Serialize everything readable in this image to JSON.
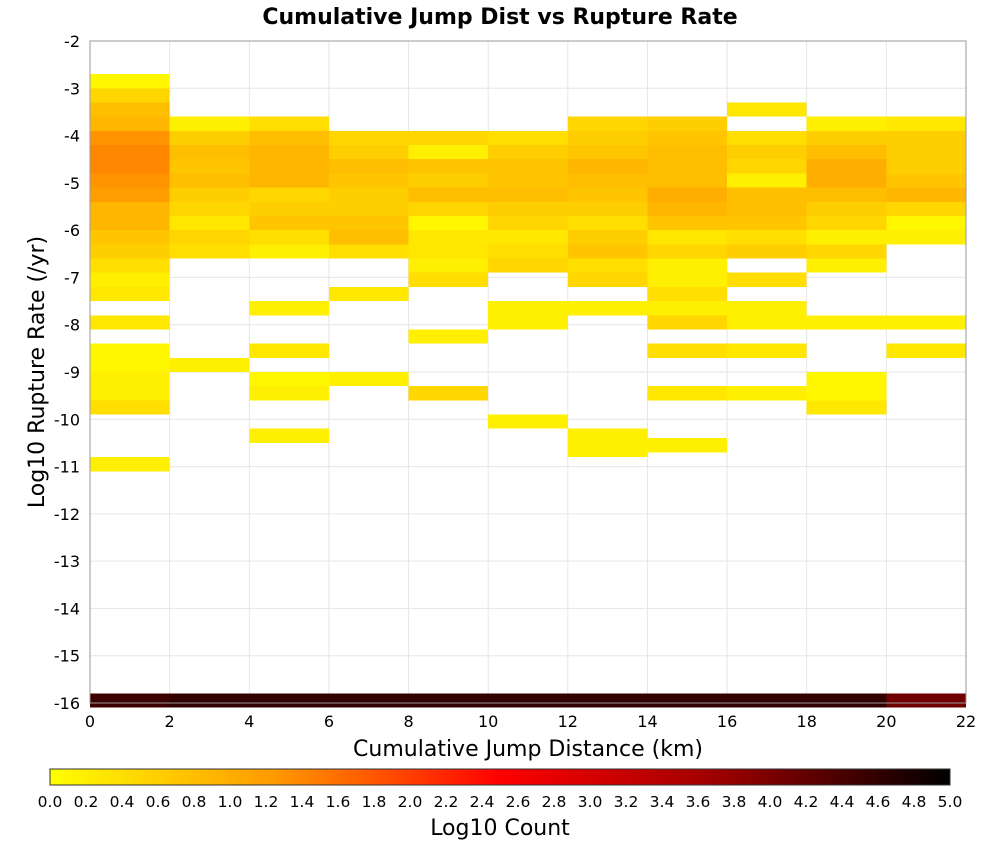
{
  "chart_data": {
    "type": "heatmap",
    "title": "Cumulative Jump Dist vs Rupture Rate",
    "xlabel": "Cumulative Jump Distance (km)",
    "ylabel": "Log10 Rupture Rate (/yr)",
    "xlim": [
      0,
      22
    ],
    "ylim": [
      -16,
      -2
    ],
    "x_ticks": [
      "0",
      "2",
      "4",
      "6",
      "8",
      "10",
      "12",
      "14",
      "16",
      "18",
      "20",
      "22"
    ],
    "y_ticks": [
      "-2",
      "-3",
      "-4",
      "-5",
      "-6",
      "-7",
      "-8",
      "-9",
      "-10",
      "-11",
      "-12",
      "-13",
      "-14",
      "-15",
      "-16"
    ],
    "grid": true,
    "colorbar": {
      "label": "Log10 Count",
      "min": 0.0,
      "max": 5.0,
      "ticks": [
        "0.0",
        "0.2",
        "0.4",
        "0.6",
        "0.8",
        "1.0",
        "1.2",
        "1.4",
        "1.6",
        "1.8",
        "2.0",
        "2.2",
        "2.4",
        "2.6",
        "2.8",
        "3.0",
        "3.2",
        "3.4",
        "3.6",
        "3.8",
        "4.0",
        "4.2",
        "4.4",
        "4.6",
        "4.8",
        "5.0"
      ],
      "colors": [
        "#ffff00",
        "#ff9900",
        "#ff0000",
        "#990000",
        "#000000"
      ]
    },
    "bin_width_x": 2,
    "bin_height_y": 0.3,
    "cells": [
      [
        1,
        -2.85,
        0.1
      ],
      [
        1,
        -3.15,
        0.5
      ],
      [
        1,
        -3.45,
        0.8
      ],
      [
        1,
        -3.75,
        0.9
      ],
      [
        1,
        -4.05,
        1.3
      ],
      [
        1,
        -4.35,
        1.4
      ],
      [
        1,
        -4.65,
        1.4
      ],
      [
        1,
        -4.95,
        1.3
      ],
      [
        1,
        -5.25,
        1.2
      ],
      [
        1,
        -5.55,
        0.9
      ],
      [
        1,
        -5.85,
        0.9
      ],
      [
        1,
        -6.15,
        0.7
      ],
      [
        1,
        -6.45,
        0.6
      ],
      [
        1,
        -6.75,
        0.4
      ],
      [
        1,
        -7.05,
        0.2
      ],
      [
        1,
        -7.35,
        0.3
      ],
      [
        1,
        -7.95,
        0.3
      ],
      [
        1,
        -8.55,
        0.1
      ],
      [
        1,
        -8.85,
        0.1
      ],
      [
        1,
        -9.15,
        0.2
      ],
      [
        1,
        -9.45,
        0.2
      ],
      [
        1,
        -9.75,
        0.4
      ],
      [
        1,
        -10.95,
        0.2
      ],
      [
        1,
        -15.95,
        4.5
      ],
      [
        3,
        -3.75,
        0.2
      ],
      [
        3,
        -4.05,
        0.6
      ],
      [
        3,
        -4.35,
        0.8
      ],
      [
        3,
        -4.65,
        0.7
      ],
      [
        3,
        -4.95,
        0.8
      ],
      [
        3,
        -5.25,
        0.6
      ],
      [
        3,
        -5.55,
        0.5
      ],
      [
        3,
        -5.85,
        0.3
      ],
      [
        3,
        -6.15,
        0.5
      ],
      [
        3,
        -6.45,
        0.4
      ],
      [
        3,
        -8.85,
        0.2
      ],
      [
        3,
        -15.95,
        4.6
      ],
      [
        5,
        -3.75,
        0.4
      ],
      [
        5,
        -4.05,
        0.8
      ],
      [
        5,
        -4.35,
        0.9
      ],
      [
        5,
        -4.65,
        0.9
      ],
      [
        5,
        -4.95,
        0.9
      ],
      [
        5,
        -5.25,
        0.5
      ],
      [
        5,
        -5.55,
        0.6
      ],
      [
        5,
        -5.85,
        0.7
      ],
      [
        5,
        -6.15,
        0.4
      ],
      [
        5,
        -6.45,
        0.2
      ],
      [
        5,
        -7.65,
        0.2
      ],
      [
        5,
        -8.55,
        0.3
      ],
      [
        5,
        -9.15,
        0.1
      ],
      [
        5,
        -9.45,
        0.2
      ],
      [
        5,
        -10.35,
        0.2
      ],
      [
        5,
        -15.95,
        4.6
      ],
      [
        7,
        -4.05,
        0.5
      ],
      [
        7,
        -4.35,
        0.6
      ],
      [
        7,
        -4.65,
        0.8
      ],
      [
        7,
        -4.95,
        0.7
      ],
      [
        7,
        -5.25,
        0.6
      ],
      [
        7,
        -5.55,
        0.6
      ],
      [
        7,
        -5.85,
        0.7
      ],
      [
        7,
        -6.15,
        0.8
      ],
      [
        7,
        -6.45,
        0.4
      ],
      [
        7,
        -7.35,
        0.3
      ],
      [
        7,
        -9.15,
        0.2
      ],
      [
        7,
        -15.95,
        4.6
      ],
      [
        9,
        -4.05,
        0.5
      ],
      [
        9,
        -4.35,
        0.2
      ],
      [
        9,
        -4.65,
        0.7
      ],
      [
        9,
        -4.95,
        0.6
      ],
      [
        9,
        -5.25,
        0.8
      ],
      [
        9,
        -5.55,
        0.5
      ],
      [
        9,
        -5.85,
        0.1
      ],
      [
        9,
        -6.15,
        0.3
      ],
      [
        9,
        -6.45,
        0.3
      ],
      [
        9,
        -6.75,
        0.2
      ],
      [
        9,
        -7.05,
        0.4
      ],
      [
        9,
        -8.25,
        0.2
      ],
      [
        9,
        -9.45,
        0.5
      ],
      [
        9,
        -15.95,
        4.6
      ],
      [
        11,
        -4.05,
        0.4
      ],
      [
        11,
        -4.35,
        0.6
      ],
      [
        11,
        -4.65,
        0.7
      ],
      [
        11,
        -4.95,
        0.7
      ],
      [
        11,
        -5.25,
        0.8
      ],
      [
        11,
        -5.55,
        0.6
      ],
      [
        11,
        -5.85,
        0.5
      ],
      [
        11,
        -6.15,
        0.3
      ],
      [
        11,
        -6.45,
        0.4
      ],
      [
        11,
        -6.75,
        0.5
      ],
      [
        11,
        -7.65,
        0.2
      ],
      [
        11,
        -7.95,
        0.2
      ],
      [
        11,
        -10.05,
        0.2
      ],
      [
        11,
        -15.95,
        4.6
      ],
      [
        13,
        -3.75,
        0.5
      ],
      [
        13,
        -4.05,
        0.6
      ],
      [
        13,
        -4.35,
        0.7
      ],
      [
        13,
        -4.65,
        0.9
      ],
      [
        13,
        -4.95,
        0.8
      ],
      [
        13,
        -5.25,
        0.7
      ],
      [
        13,
        -5.55,
        0.6
      ],
      [
        13,
        -5.85,
        0.4
      ],
      [
        13,
        -6.15,
        0.6
      ],
      [
        13,
        -6.45,
        0.7
      ],
      [
        13,
        -6.75,
        0.4
      ],
      [
        13,
        -7.05,
        0.5
      ],
      [
        13,
        -7.65,
        0.2
      ],
      [
        13,
        -10.35,
        0.2
      ],
      [
        13,
        -10.65,
        0.2
      ],
      [
        13,
        -15.95,
        4.6
      ],
      [
        15,
        -3.75,
        0.6
      ],
      [
        15,
        -4.05,
        0.7
      ],
      [
        15,
        -4.35,
        0.8
      ],
      [
        15,
        -4.65,
        0.8
      ],
      [
        15,
        -4.95,
        0.8
      ],
      [
        15,
        -5.25,
        1.0
      ],
      [
        15,
        -5.55,
        0.9
      ],
      [
        15,
        -5.85,
        0.7
      ],
      [
        15,
        -6.15,
        0.3
      ],
      [
        15,
        -6.45,
        0.5
      ],
      [
        15,
        -6.75,
        0.2
      ],
      [
        15,
        -7.05,
        0.2
      ],
      [
        15,
        -7.35,
        0.4
      ],
      [
        15,
        -7.65,
        0.2
      ],
      [
        15,
        -7.95,
        0.5
      ],
      [
        15,
        -8.55,
        0.4
      ],
      [
        15,
        -9.45,
        0.3
      ],
      [
        15,
        -10.55,
        0.2
      ],
      [
        15,
        -15.95,
        4.6
      ],
      [
        17,
        -3.45,
        0.3
      ],
      [
        17,
        -4.05,
        0.4
      ],
      [
        17,
        -4.35,
        0.6
      ],
      [
        17,
        -4.65,
        0.5
      ],
      [
        17,
        -4.95,
        0.2
      ],
      [
        17,
        -5.25,
        0.8
      ],
      [
        17,
        -5.55,
        0.8
      ],
      [
        17,
        -5.85,
        0.7
      ],
      [
        17,
        -6.15,
        0.4
      ],
      [
        17,
        -6.45,
        0.6
      ],
      [
        17,
        -7.05,
        0.4
      ],
      [
        17,
        -7.65,
        0.2
      ],
      [
        17,
        -7.95,
        0.2
      ],
      [
        17,
        -8.55,
        0.3
      ],
      [
        17,
        -9.45,
        0.2
      ],
      [
        17,
        -15.95,
        4.6
      ],
      [
        19,
        -3.75,
        0.2
      ],
      [
        19,
        -4.05,
        0.6
      ],
      [
        19,
        -4.35,
        0.8
      ],
      [
        19,
        -4.65,
        1.0
      ],
      [
        19,
        -4.95,
        1.0
      ],
      [
        19,
        -5.25,
        0.8
      ],
      [
        19,
        -5.55,
        0.6
      ],
      [
        19,
        -5.85,
        0.5
      ],
      [
        19,
        -6.15,
        0.2
      ],
      [
        19,
        -6.45,
        0.5
      ],
      [
        19,
        -6.75,
        0.2
      ],
      [
        19,
        -7.95,
        0.2
      ],
      [
        19,
        -9.15,
        0.1
      ],
      [
        19,
        -9.45,
        0.1
      ],
      [
        19,
        -9.75,
        0.3
      ],
      [
        19,
        -15.95,
        4.6
      ],
      [
        21,
        -3.75,
        0.3
      ],
      [
        21,
        -4.05,
        0.6
      ],
      [
        21,
        -4.35,
        0.6
      ],
      [
        21,
        -4.65,
        0.6
      ],
      [
        21,
        -4.95,
        0.7
      ],
      [
        21,
        -5.25,
        0.9
      ],
      [
        21,
        -5.55,
        0.5
      ],
      [
        21,
        -5.85,
        0.1
      ],
      [
        21,
        -6.15,
        0.2
      ],
      [
        21,
        -7.95,
        0.2
      ],
      [
        21,
        -8.55,
        0.3
      ],
      [
        21,
        -15.95,
        4.1
      ]
    ]
  }
}
